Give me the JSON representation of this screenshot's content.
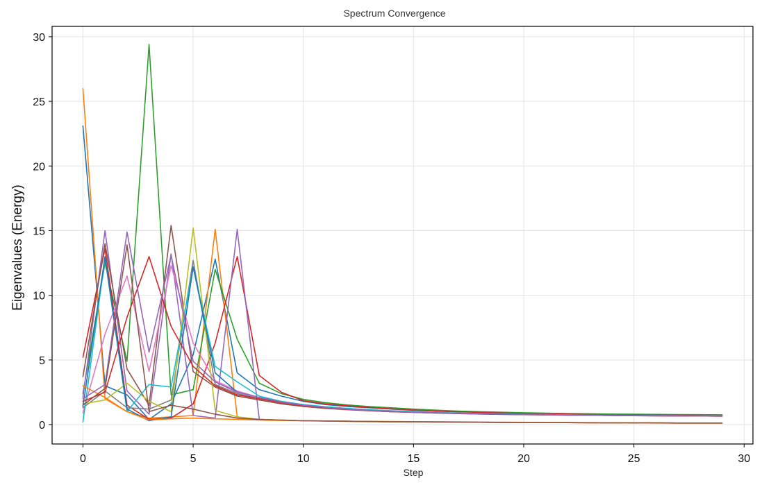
{
  "chart_data": {
    "type": "line",
    "title": "Spectrum Convergence",
    "xlabel": "Step",
    "ylabel": "Eigenvalues (Energy)",
    "xlim": [
      -1.4,
      30.4
    ],
    "ylim": [
      -1.5,
      30.8
    ],
    "xticks": [
      0,
      5,
      10,
      15,
      20,
      25,
      30
    ],
    "yticks": [
      0,
      5,
      10,
      15,
      20,
      25,
      30
    ],
    "grid": true,
    "legend": "none",
    "x": [
      0,
      1,
      2,
      3,
      4,
      5,
      6,
      7,
      8,
      9,
      10,
      11,
      12,
      13,
      14,
      15,
      16,
      17,
      18,
      19,
      20,
      21,
      22,
      23,
      24,
      25,
      26,
      27,
      28,
      29
    ],
    "series": [
      {
        "color": "#1f77b4",
        "values": [
          23.1,
          3.0,
          2.3,
          0.4,
          1.6,
          5.4,
          12.8,
          4.0,
          2.7,
          2.2,
          1.8,
          1.55,
          1.4,
          1.3,
          1.2,
          1.1,
          1.05,
          1.0,
          0.95,
          0.9,
          0.88,
          0.85,
          0.83,
          0.8,
          0.78,
          0.76,
          0.74,
          0.72,
          0.71,
          0.7
        ]
      },
      {
        "color": "#ff7f0e",
        "values": [
          26.0,
          2.0,
          1.0,
          0.5,
          0.6,
          0.7,
          15.1,
          0.6,
          0.4,
          0.35,
          0.3,
          0.28,
          0.26,
          0.25,
          0.24,
          0.23,
          0.22,
          0.21,
          0.2,
          0.19,
          0.18,
          0.17,
          0.16,
          0.15,
          0.14,
          0.13,
          0.12,
          0.12,
          0.11,
          0.11
        ]
      },
      {
        "color": "#2ca02c",
        "values": [
          2.4,
          12.5,
          4.9,
          29.4,
          2.3,
          2.7,
          12.0,
          6.6,
          3.2,
          2.4,
          1.95,
          1.7,
          1.52,
          1.4,
          1.3,
          1.2,
          1.12,
          1.05,
          1.0,
          0.96,
          0.92,
          0.89,
          0.86,
          0.84,
          0.82,
          0.8,
          0.79,
          0.78,
          0.77,
          0.76
        ]
      },
      {
        "color": "#d62728",
        "values": [
          5.2,
          13.6,
          1.5,
          0.4,
          0.5,
          1.6,
          6.3,
          13.0,
          3.8,
          2.5,
          1.85,
          1.6,
          1.45,
          1.33,
          1.22,
          1.13,
          1.05,
          0.99,
          0.94,
          0.9,
          0.86,
          0.83,
          0.8,
          0.78,
          0.76,
          0.74,
          0.72,
          0.71,
          0.7,
          0.69
        ]
      },
      {
        "color": "#9467bd",
        "values": [
          2.1,
          15.0,
          2.6,
          0.8,
          13.2,
          0.7,
          0.5,
          15.1,
          0.4,
          0.35,
          0.3,
          0.28,
          0.26,
          0.24,
          0.22,
          0.21,
          0.2,
          0.19,
          0.18,
          0.17,
          0.16,
          0.15,
          0.15,
          0.14,
          0.14,
          0.13,
          0.13,
          0.12,
          0.12,
          0.12
        ]
      },
      {
        "color": "#8c564b",
        "values": [
          3.7,
          14.0,
          4.3,
          1.5,
          15.4,
          4.1,
          2.9,
          2.2,
          1.9,
          1.6,
          1.4,
          1.25,
          1.15,
          1.07,
          1.0,
          0.95,
          0.9,
          0.86,
          0.83,
          0.8,
          0.78,
          0.76,
          0.74,
          0.72,
          0.71,
          0.7,
          0.69,
          0.68,
          0.67,
          0.66
        ]
      },
      {
        "color": "#e377c2",
        "values": [
          0.9,
          7.0,
          11.5,
          4.1,
          12.3,
          6.3,
          3.4,
          2.6,
          2.1,
          1.75,
          1.5,
          1.33,
          1.2,
          1.1,
          1.02,
          0.96,
          0.91,
          0.87,
          0.84,
          0.81,
          0.79,
          0.77,
          0.75,
          0.73,
          0.72,
          0.71,
          0.7,
          0.69,
          0.68,
          0.67
        ]
      },
      {
        "color": "#7f7f7f",
        "values": [
          1.3,
          2.6,
          1.3,
          1.2,
          1.9,
          12.7,
          3.1,
          2.4,
          2.0,
          1.7,
          1.45,
          1.3,
          1.18,
          1.08,
          1.0,
          0.94,
          0.89,
          0.85,
          0.82,
          0.79,
          0.77,
          0.75,
          0.73,
          0.72,
          0.7,
          0.69,
          0.68,
          0.67,
          0.66,
          0.65
        ]
      },
      {
        "color": "#bcbd22",
        "values": [
          1.6,
          1.9,
          3.2,
          1.8,
          1.0,
          15.2,
          1.1,
          0.6,
          0.4,
          0.35,
          0.3,
          0.28,
          0.26,
          0.24,
          0.22,
          0.21,
          0.2,
          0.19,
          0.18,
          0.17,
          0.16,
          0.15,
          0.15,
          0.14,
          0.14,
          0.13,
          0.13,
          0.12,
          0.12,
          0.12
        ]
      },
      {
        "color": "#17becf",
        "values": [
          0.2,
          12.9,
          1.0,
          3.1,
          2.9,
          12.2,
          4.5,
          3.3,
          2.2,
          1.8,
          1.55,
          1.38,
          1.25,
          1.15,
          1.07,
          1.0,
          0.95,
          0.9,
          0.86,
          0.83,
          0.8,
          0.78,
          0.76,
          0.74,
          0.72,
          0.71,
          0.7,
          0.69,
          0.68,
          0.67
        ]
      },
      {
        "color": "#1f77b4",
        "values": [
          1.4,
          13.0,
          1.2,
          0.3,
          0.6,
          12.2,
          4.0,
          2.5,
          2.1,
          1.75,
          1.5,
          1.32,
          1.2,
          1.1,
          1.02,
          0.96,
          0.91,
          0.87,
          0.83,
          0.8,
          0.78,
          0.76,
          0.74,
          0.72,
          0.71,
          0.7,
          0.69,
          0.68,
          0.67,
          0.66
        ]
      },
      {
        "color": "#ff7f0e",
        "values": [
          3.0,
          2.1,
          1.0,
          0.35,
          0.45,
          0.5,
          0.45,
          0.4,
          0.35,
          0.32,
          0.29,
          0.27,
          0.25,
          0.23,
          0.22,
          0.21,
          0.2,
          0.19,
          0.18,
          0.17,
          0.16,
          0.15,
          0.15,
          0.14,
          0.14,
          0.13,
          0.13,
          0.12,
          0.12,
          0.12
        ]
      },
      {
        "color": "#d62728",
        "values": [
          1.8,
          2.5,
          8.3,
          13.0,
          7.6,
          4.5,
          3.0,
          2.3,
          2.0,
          1.7,
          1.45,
          1.3,
          1.18,
          1.08,
          1.0,
          0.95,
          0.9,
          0.86,
          0.82,
          0.79,
          0.77,
          0.75,
          0.73,
          0.72,
          0.7,
          0.69,
          0.68,
          0.67,
          0.66,
          0.65
        ]
      },
      {
        "color": "#9467bd",
        "values": [
          2.0,
          3.1,
          14.9,
          5.6,
          13.1,
          4.9,
          3.3,
          2.5,
          2.1,
          1.75,
          1.5,
          1.33,
          1.2,
          1.1,
          1.02,
          0.96,
          0.91,
          0.87,
          0.83,
          0.8,
          0.78,
          0.76,
          0.74,
          0.72,
          0.71,
          0.7,
          0.69,
          0.68,
          0.67,
          0.66
        ]
      },
      {
        "color": "#8c564b",
        "values": [
          1.5,
          2.8,
          13.9,
          1.0,
          1.5,
          1.2,
          0.8,
          0.5,
          0.4,
          0.35,
          0.3,
          0.28,
          0.26,
          0.24,
          0.22,
          0.21,
          0.2,
          0.19,
          0.18,
          0.17,
          0.16,
          0.15,
          0.15,
          0.14,
          0.14,
          0.13,
          0.13,
          0.12,
          0.12,
          0.12
        ]
      }
    ]
  }
}
